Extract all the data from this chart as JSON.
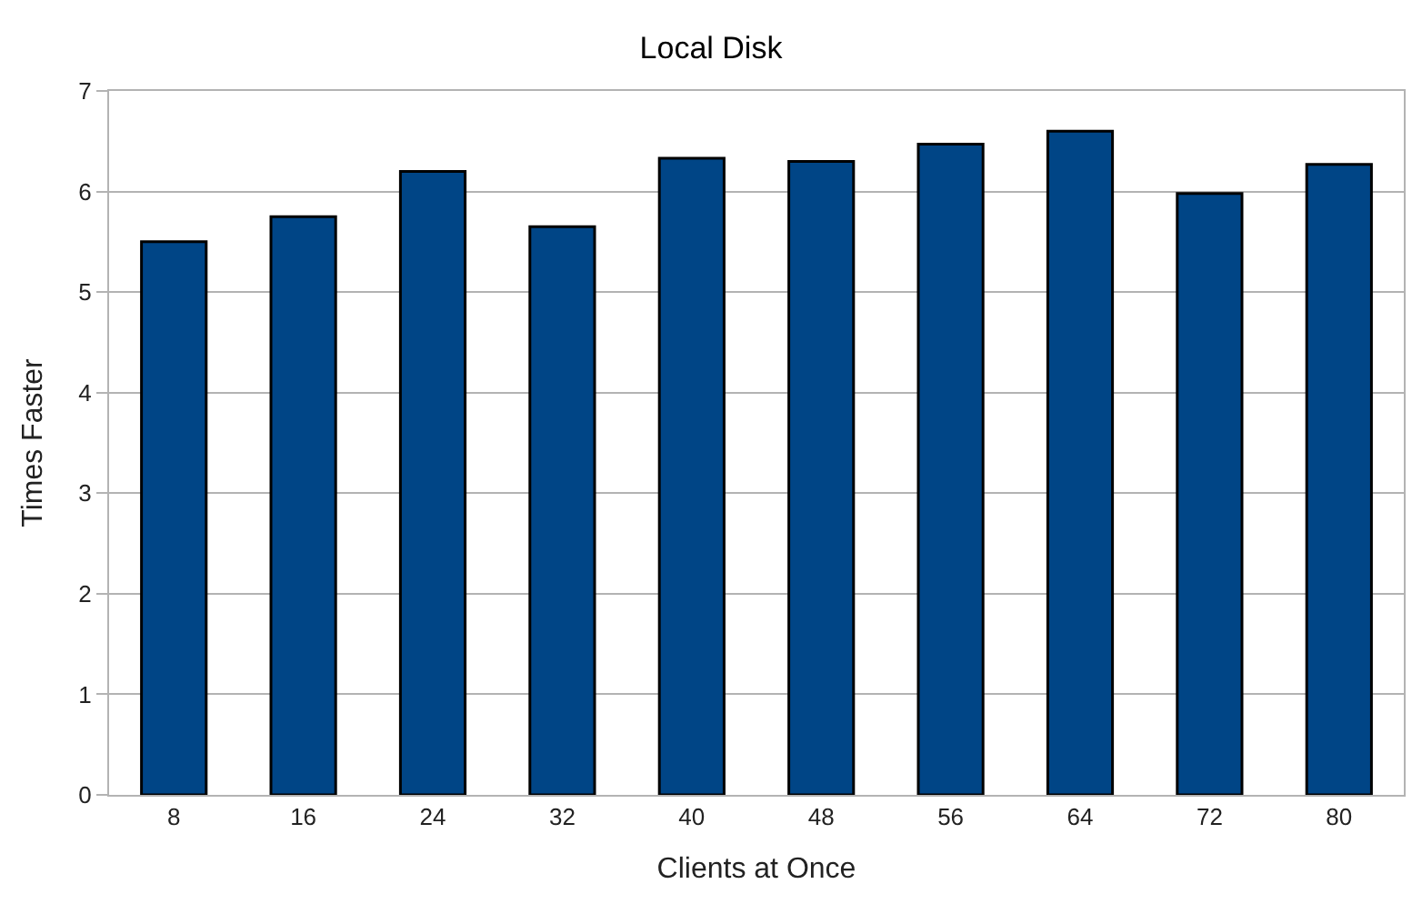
{
  "chart_data": {
    "type": "bar",
    "title": "Local Disk",
    "xlabel": "Clients at Once",
    "ylabel": "Times Faster",
    "categories": [
      "8",
      "16",
      "24",
      "32",
      "40",
      "48",
      "56",
      "64",
      "72",
      "80"
    ],
    "values": [
      5.5,
      5.75,
      6.2,
      5.65,
      6.33,
      6.3,
      6.47,
      6.6,
      5.98,
      6.27
    ],
    "color": "#004586",
    "ylim": [
      0,
      7
    ],
    "yticks": [
      0,
      1,
      2,
      3,
      4,
      5,
      6,
      7
    ],
    "grid": "y"
  }
}
